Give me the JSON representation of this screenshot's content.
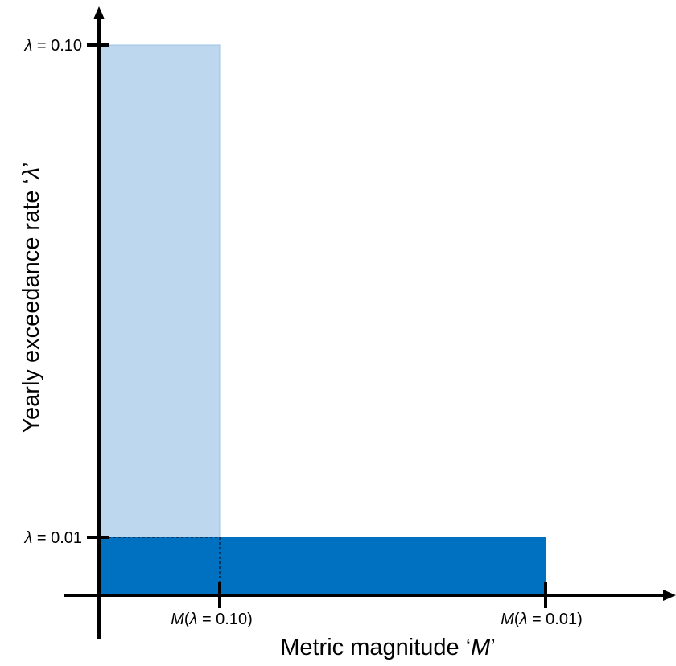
{
  "axes": {
    "x_title": {
      "main": "Metric magnitude ‘",
      "symbol": "M",
      "close": "’"
    },
    "y_title": {
      "main": "Yearly exceedance rate ‘",
      "symbol": "λ",
      "close": "’"
    }
  },
  "y_ticks": [
    {
      "symbol": "λ",
      "text": " = 0.10"
    },
    {
      "symbol": "λ",
      "text": " = 0.01"
    }
  ],
  "x_ticks": [
    {
      "symbol": "M",
      "open": "(",
      "inner_symbol": "λ",
      "text": " = 0.10)"
    },
    {
      "symbol": "M",
      "open": "(",
      "inner_symbol": "λ",
      "text": " = 0.01)"
    }
  ],
  "colors": {
    "tall_rect": "#bdd7ee",
    "wide_rect": "#0070c0",
    "axis": "#000000"
  }
}
